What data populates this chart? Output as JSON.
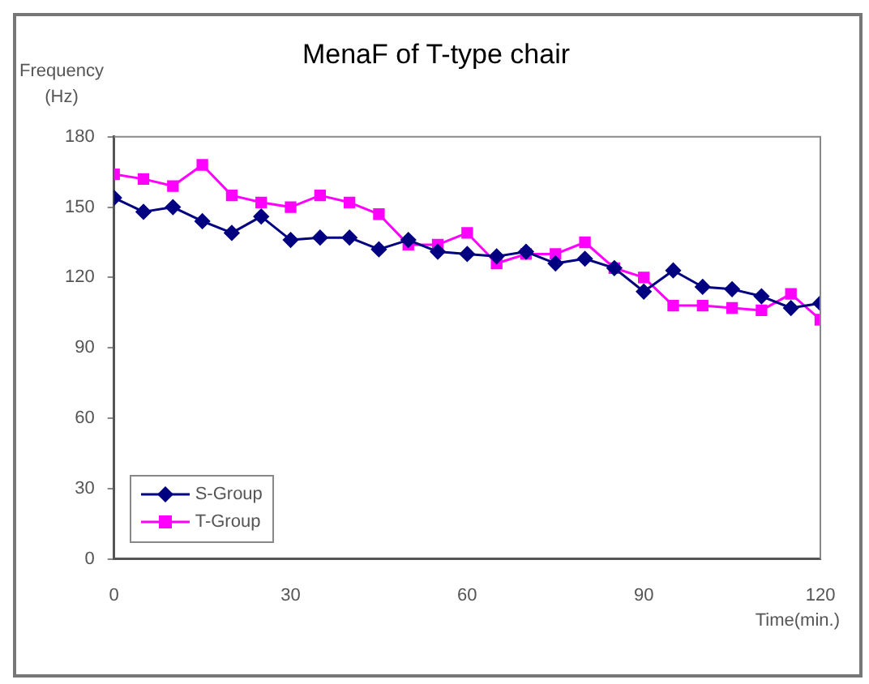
{
  "chart_data": {
    "type": "line",
    "title": "MenaF of T-type chair",
    "xlabel": "Time(min.)",
    "ylabel": "Frequency\n(Hz)",
    "x": [
      0,
      5,
      10,
      15,
      20,
      25,
      30,
      35,
      40,
      45,
      50,
      55,
      60,
      65,
      70,
      75,
      80,
      85,
      90,
      95,
      100,
      105,
      110,
      115,
      120
    ],
    "series": [
      {
        "name": "S-Group",
        "color": "#000080",
        "marker": "diamond",
        "values": [
          154,
          148,
          150,
          144,
          139,
          146,
          136,
          137,
          137,
          132,
          136,
          131,
          130,
          129,
          131,
          126,
          128,
          124,
          114,
          123,
          116,
          115,
          112,
          107,
          109
        ]
      },
      {
        "name": "T-Group",
        "color": "#ff00ff",
        "marker": "square",
        "values": [
          164,
          162,
          159,
          168,
          155,
          152,
          150,
          155,
          152,
          147,
          134,
          134,
          139,
          126,
          130,
          130,
          135,
          124,
          120,
          108,
          108,
          107,
          106,
          113,
          102
        ]
      }
    ],
    "xlim": [
      0,
      120
    ],
    "xticks": [
      0,
      30,
      60,
      90,
      120
    ],
    "ylim": [
      0,
      180
    ],
    "yticks": [
      0,
      30,
      60,
      90,
      120,
      150,
      180
    ],
    "grid": false,
    "legend": "bottom left",
    "line_style": "solid"
  }
}
